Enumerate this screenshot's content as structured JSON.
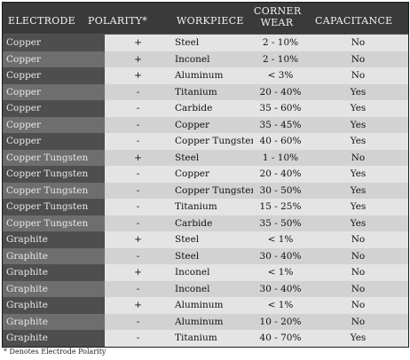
{
  "table": {
    "headers": {
      "electrode": "ELECTRODE",
      "polarity": "POLARITY*",
      "workpiece": "WORKPIECE",
      "corner_wear_line1": "CORNER",
      "corner_wear_line2": "WEAR",
      "capacitance": "CAPACITANCE"
    },
    "rows": [
      {
        "electrode": "Copper",
        "polarity": "+",
        "workpiece": "Steel",
        "wear": "2 - 10%",
        "capacitance": "No"
      },
      {
        "electrode": "Copper",
        "polarity": "+",
        "workpiece": "Inconel",
        "wear": "2 - 10%",
        "capacitance": "No"
      },
      {
        "electrode": "Copper",
        "polarity": "+",
        "workpiece": "Aluminum",
        "wear": "< 3%",
        "capacitance": "No"
      },
      {
        "electrode": "Copper",
        "polarity": "-",
        "workpiece": "Titanium",
        "wear": "20 - 40%",
        "capacitance": "Yes"
      },
      {
        "electrode": "Copper",
        "polarity": "-",
        "workpiece": "Carbide",
        "wear": "35 - 60%",
        "capacitance": "Yes"
      },
      {
        "electrode": "Copper",
        "polarity": "-",
        "workpiece": "Copper",
        "wear": "35 - 45%",
        "capacitance": "Yes"
      },
      {
        "electrode": "Copper",
        "polarity": "-",
        "workpiece": "Copper Tungsten",
        "wear": "40 - 60%",
        "capacitance": "Yes"
      },
      {
        "electrode": "Copper Tungsten",
        "polarity": "+",
        "workpiece": "Steel",
        "wear": "1 - 10%",
        "capacitance": "No"
      },
      {
        "electrode": "Copper Tungsten",
        "polarity": "-",
        "workpiece": "Copper",
        "wear": "20 - 40%",
        "capacitance": "Yes"
      },
      {
        "electrode": "Copper Tungsten",
        "polarity": "-",
        "workpiece": "Copper Tungsten",
        "wear": "30 - 50%",
        "capacitance": "Yes"
      },
      {
        "electrode": "Copper Tungsten",
        "polarity": "-",
        "workpiece": "Titanium",
        "wear": "15 - 25%",
        "capacitance": "Yes"
      },
      {
        "electrode": "Copper Tungsten",
        "polarity": "-",
        "workpiece": "Carbide",
        "wear": "35 - 50%",
        "capacitance": "Yes"
      },
      {
        "electrode": "Graphite",
        "polarity": "+",
        "workpiece": "Steel",
        "wear": "< 1%",
        "capacitance": "No"
      },
      {
        "electrode": "Graphite",
        "polarity": "-",
        "workpiece": "Steel",
        "wear": "30 - 40%",
        "capacitance": "No"
      },
      {
        "electrode": "Graphite",
        "polarity": "+",
        "workpiece": "Inconel",
        "wear": "< 1%",
        "capacitance": "No"
      },
      {
        "electrode": "Graphite",
        "polarity": "-",
        "workpiece": "Inconel",
        "wear": "30 - 40%",
        "capacitance": "No"
      },
      {
        "electrode": "Graphite",
        "polarity": "+",
        "workpiece": "Aluminum",
        "wear": "< 1%",
        "capacitance": "No"
      },
      {
        "electrode": "Graphite",
        "polarity": "-",
        "workpiece": "Aluminum",
        "wear": "10 - 20%",
        "capacitance": "No"
      },
      {
        "electrode": "Graphite",
        "polarity": "-",
        "workpiece": "Titanium",
        "wear": "40 - 70%",
        "capacitance": "Yes"
      }
    ]
  },
  "footnote": "* Denotes Electrode Polarity"
}
